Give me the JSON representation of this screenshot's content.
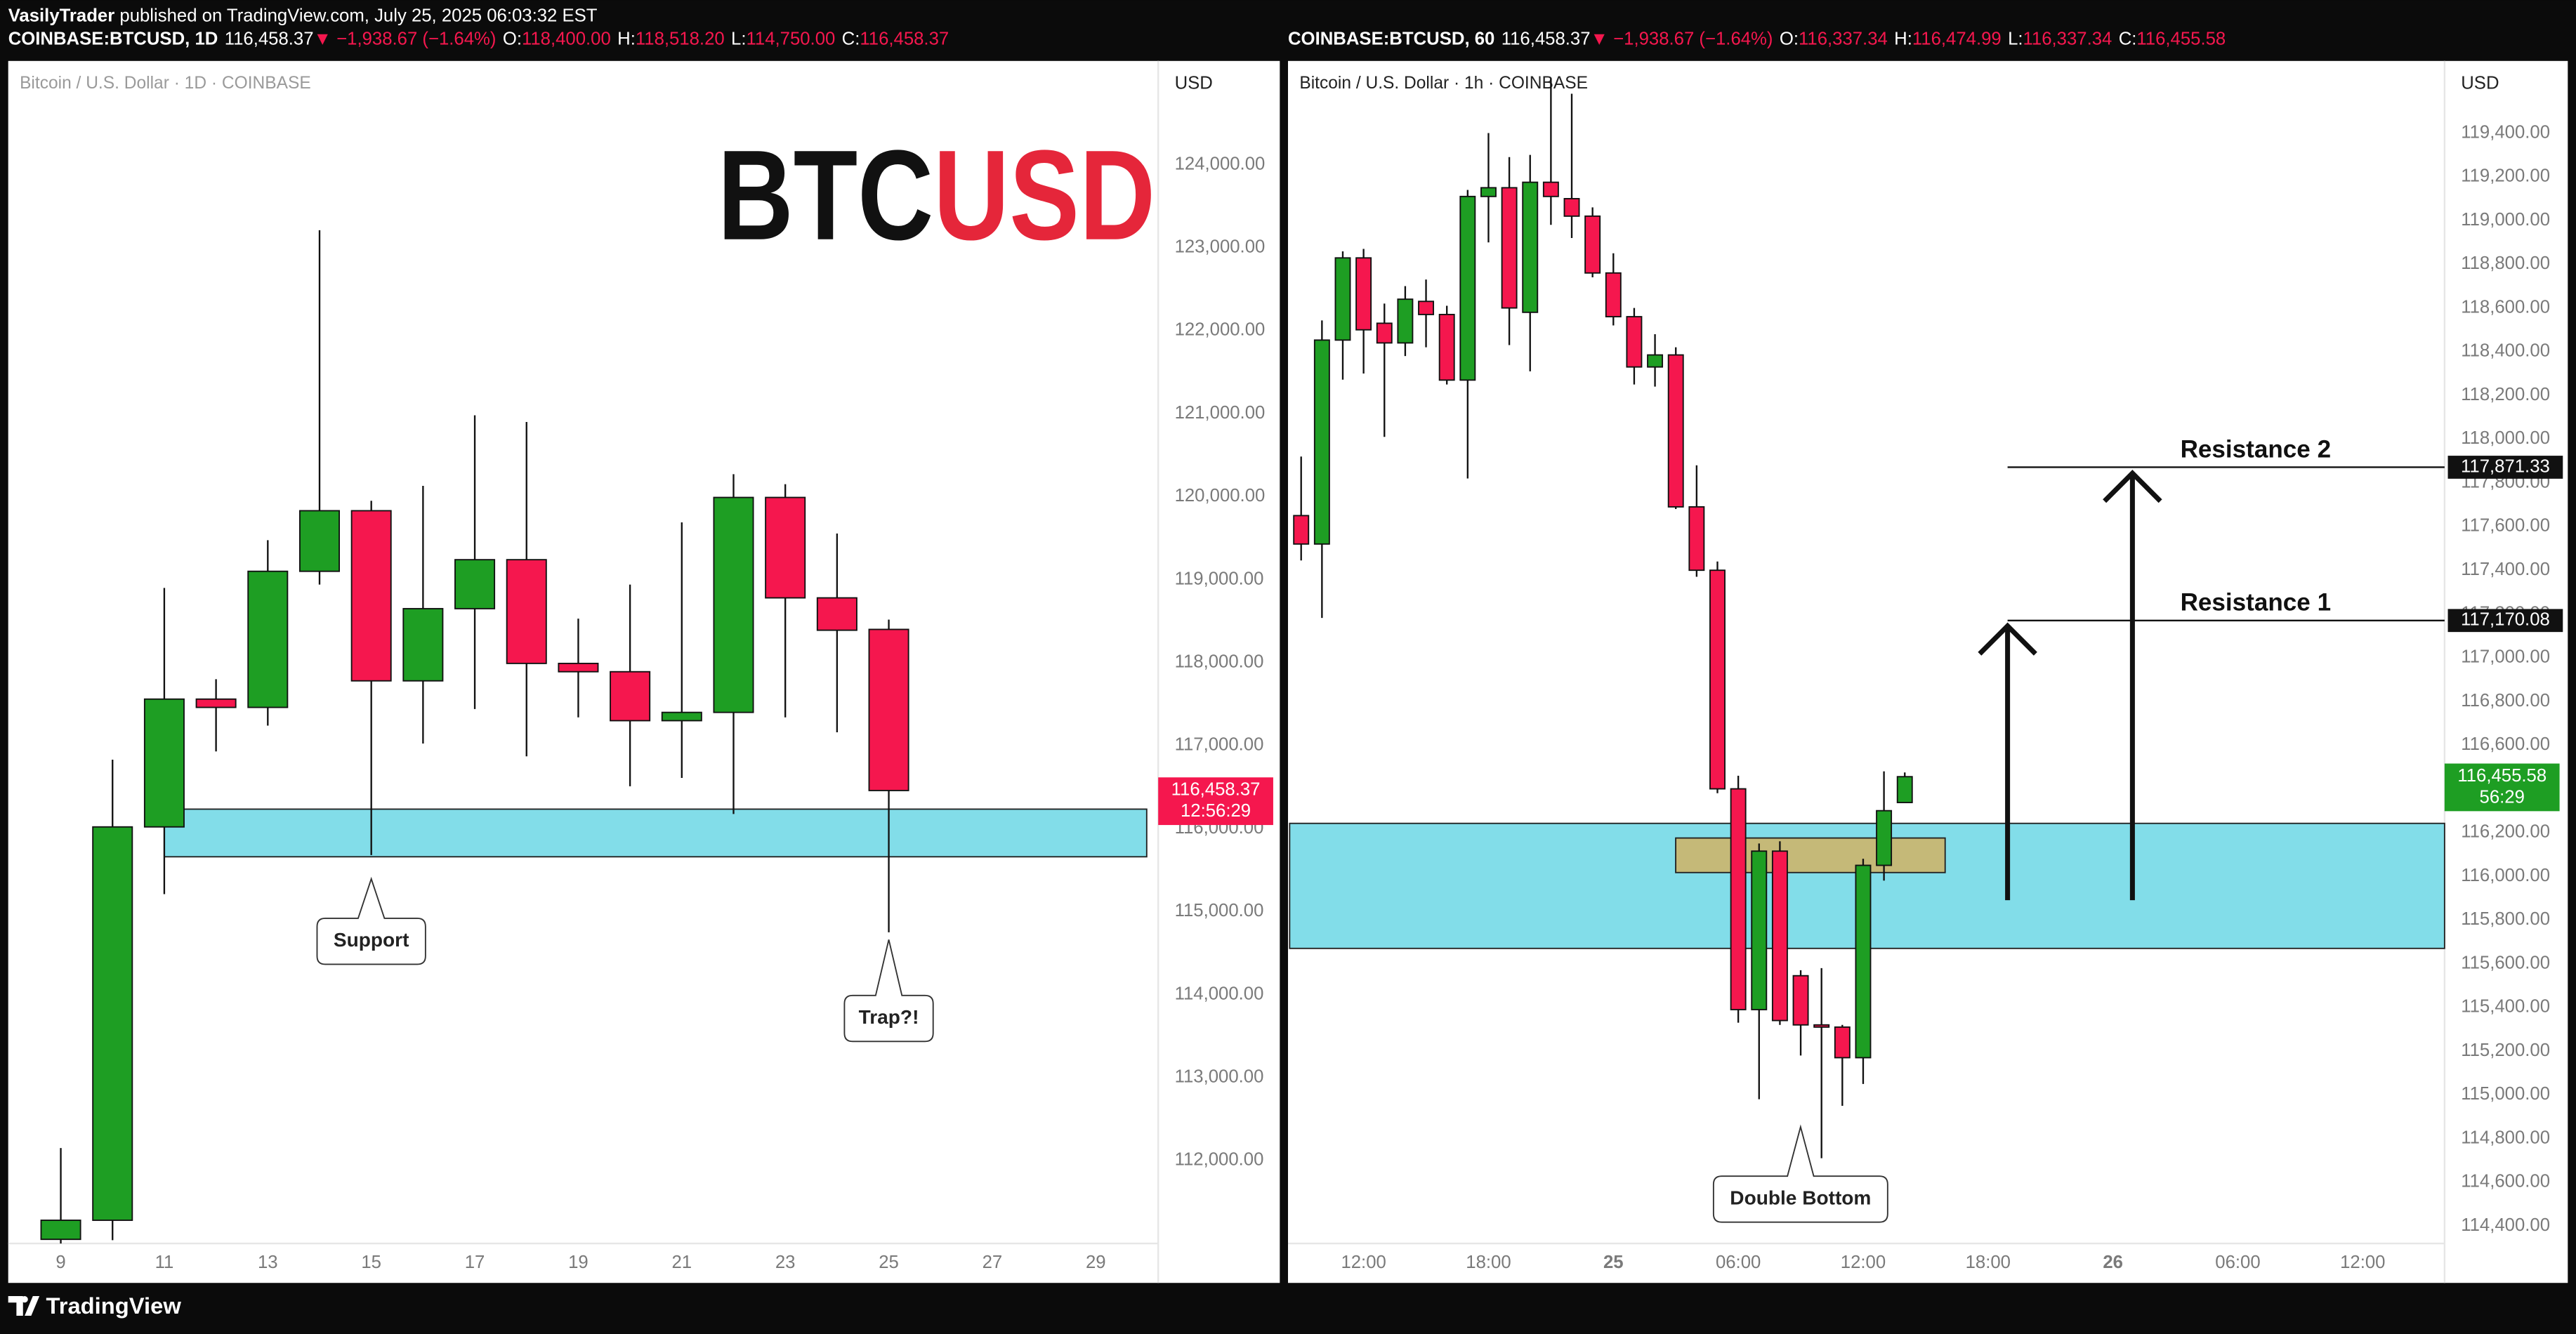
{
  "header": {
    "publisher": "VasilyTrader",
    "published": " published on TradingView.com, July 25, 2025 06:03:32 EST"
  },
  "footer": "TradingView",
  "chart_data": [
    {
      "type": "candlestick",
      "symbol": "COINBASE:BTCUSD, 1D",
      "last": "116,458.37",
      "change": "▼ −1,938.67 (−1.64%)",
      "ohlc_labels": [
        {
          "key": "O:",
          "value": "118,400.00"
        },
        {
          "key": "H:",
          "value": "118,518.20"
        },
        {
          "key": "L:",
          "value": "114,750.00"
        },
        {
          "key": "C:",
          "value": "116,458.37"
        }
      ],
      "pane_title": "Bitcoin / U.S. Dollar · 1D · COINBASE",
      "currency": "USD",
      "watermark": [
        "BTC",
        "USD"
      ],
      "up_color": "#1e9e23",
      "down_color": "#f5174e",
      "categories": [
        "9",
        null,
        "11",
        null,
        "13",
        null,
        "15",
        null,
        "17",
        null,
        "19",
        null,
        "21",
        null,
        "23",
        null,
        "25",
        null,
        "27",
        null,
        "29"
      ],
      "open": [
        111050,
        111280,
        116020,
        117560,
        117460,
        119100,
        119830,
        117780,
        118650,
        119240,
        117990,
        117890,
        117300,
        117400,
        119990,
        118780,
        118400.0,
        null,
        null,
        null,
        null
      ],
      "high": [
        112150,
        116830,
        118900,
        117800,
        119475,
        123210,
        119950,
        120130,
        120980,
        120900,
        118530,
        118940,
        119690,
        120270,
        120150,
        119555,
        118518.2,
        null,
        null,
        null,
        null
      ],
      "low": [
        111000,
        111040,
        115210,
        116930,
        117240,
        118940,
        115680,
        117025,
        117440,
        116870,
        117340,
        116510,
        116610,
        116175,
        117340,
        117160,
        114750.0,
        null,
        null,
        null,
        null
      ],
      "close": [
        111280,
        116020,
        117560,
        117460,
        119100,
        119830,
        117780,
        118650,
        119240,
        117990,
        117890,
        117300,
        117400,
        119990,
        118780,
        118390,
        116458.37,
        null,
        null,
        null,
        null
      ],
      "ylim": [
        111000,
        125250
      ],
      "yticks": [
        {
          "value": 112000,
          "label": "112,000.00"
        },
        {
          "value": 113000,
          "label": "113,000.00"
        },
        {
          "value": 114000,
          "label": "114,000.00"
        },
        {
          "value": 115000,
          "label": "115,000.00"
        },
        {
          "value": 116000,
          "label": "116,000.00"
        },
        {
          "value": 117000,
          "label": "117,000.00"
        },
        {
          "value": 118000,
          "label": "118,000.00"
        },
        {
          "value": 119000,
          "label": "119,000.00"
        },
        {
          "value": 120000,
          "label": "120,000.00"
        },
        {
          "value": 121000,
          "label": "121,000.00"
        },
        {
          "value": 122000,
          "label": "122,000.00"
        },
        {
          "value": 123000,
          "label": "123,000.00"
        },
        {
          "value": 124000,
          "label": "124,000.00"
        }
      ],
      "zone": [
        115660,
        116234
      ],
      "callouts": [
        "Support",
        "Trap?!"
      ],
      "last_price": {
        "value": 116458.37,
        "label": "116,458.37"
      },
      "countdown": "12:56:29"
    },
    {
      "type": "candlestick",
      "symbol": "COINBASE:BTCUSD, 60",
      "last": "116,458.37",
      "change": "▼ −1,938.67 (−1.64%)",
      "ohlc_labels": [
        {
          "key": "O:",
          "value": "116,337.34"
        },
        {
          "key": "H:",
          "value": "116,474.99"
        },
        {
          "key": "L:",
          "value": "116,337.34"
        },
        {
          "key": "C:",
          "value": "116,455.58"
        }
      ],
      "pane_title": "Bitcoin / U.S. Dollar · 1h · COINBASE",
      "currency": "USD",
      "up_color": "#1e9e23",
      "down_color": "#f5174e",
      "categories": [
        null,
        null,
        null,
        "12:00",
        null,
        null,
        null,
        null,
        null,
        "18:00",
        null,
        null,
        null,
        null,
        null,
        "25",
        null,
        null,
        null,
        null,
        null,
        "06:00",
        null,
        null,
        null,
        null,
        null,
        "12:00",
        null,
        null,
        null,
        null,
        null,
        "18:00",
        null,
        null,
        null,
        null,
        null,
        "26",
        null,
        null,
        null,
        null,
        null,
        "06:00",
        null,
        null,
        null,
        null,
        null,
        "12:00",
        null,
        null,
        null,
        null
      ],
      "open": [
        117650,
        117520,
        118453,
        118829,
        118530,
        118440,
        118630,
        118570,
        118270,
        119110,
        119150,
        118580,
        119175,
        119100,
        119020,
        118760,
        118560,
        118330,
        118385,
        117690,
        117400,
        116400,
        115390,
        116115,
        115545,
        115320,
        115310,
        115170,
        116050,
        116337.34,
        null,
        null,
        null,
        null,
        null,
        null,
        null,
        null,
        null,
        null,
        null,
        null,
        null,
        null,
        null,
        null,
        null,
        null,
        null,
        null,
        null,
        null,
        null,
        null,
        null,
        null
      ],
      "high": [
        117920,
        118543,
        118859,
        118870,
        118620,
        118700,
        118730,
        118610,
        119140,
        119400,
        119290,
        119300,
        119650,
        119580,
        119060,
        118850,
        118600,
        118480,
        118420,
        117880,
        117440,
        116460,
        116150,
        116160,
        115570,
        115580,
        115320,
        116080,
        116480,
        116474.99,
        null,
        null,
        null,
        null,
        null,
        null,
        null,
        null,
        null,
        null,
        null,
        null,
        null,
        null,
        null,
        null,
        null,
        null,
        null,
        null,
        null,
        null,
        null,
        null,
        null,
        null
      ],
      "low": [
        117445,
        117182,
        118272,
        118300,
        118010,
        118380,
        118420,
        118250,
        117820,
        118900,
        118430,
        118310,
        118980,
        118920,
        118740,
        118520,
        118250,
        118240,
        117680,
        117370,
        116380,
        115330,
        114980,
        115320,
        115180,
        114710,
        114950,
        115050,
        115980,
        116337.34,
        null,
        null,
        null,
        null,
        null,
        null,
        null,
        null,
        null,
        null,
        null,
        null,
        null,
        null,
        null,
        null,
        null,
        null,
        null,
        null,
        null,
        null,
        null,
        null,
        null,
        null
      ],
      "close": [
        117520,
        118453,
        118829,
        118500,
        118440,
        118640,
        118570,
        118270,
        119110,
        119150,
        118600,
        119175,
        119110,
        119020,
        118760,
        118560,
        118330,
        118385,
        117690,
        117400,
        116400,
        115390,
        116115,
        115340,
        115320,
        115310,
        115170,
        116050,
        116300,
        116455.58,
        null,
        null,
        null,
        null,
        null,
        null,
        null,
        null,
        null,
        null,
        null,
        null,
        null,
        null,
        null,
        null,
        null,
        null,
        null,
        null,
        null,
        null,
        null,
        null,
        null,
        null
      ],
      "ylim": [
        114320,
        119730
      ],
      "yticks": [
        {
          "value": 114400,
          "label": "114,400.00"
        },
        {
          "value": 114600,
          "label": "114,600.00"
        },
        {
          "value": 114800,
          "label": "114,800.00"
        },
        {
          "value": 115000,
          "label": "115,000.00"
        },
        {
          "value": 115200,
          "label": "115,200.00"
        },
        {
          "value": 115400,
          "label": "115,400.00"
        },
        {
          "value": 115600,
          "label": "115,600.00"
        },
        {
          "value": 115800,
          "label": "115,800.00"
        },
        {
          "value": 116000,
          "label": "116,000.00"
        },
        {
          "value": 116200,
          "label": "116,200.00"
        },
        {
          "value": 116400,
          "label": "116,400.00"
        },
        {
          "value": 116600,
          "label": "116,600.00"
        },
        {
          "value": 116800,
          "label": "116,800.00"
        },
        {
          "value": 117000,
          "label": "117,000.00"
        },
        {
          "value": 117200,
          "label": "117,200.00"
        },
        {
          "value": 117400,
          "label": "117,400.00"
        },
        {
          "value": 117600,
          "label": "117,600.00"
        },
        {
          "value": 117800,
          "label": "117,800.00"
        },
        {
          "value": 118000,
          "label": "118,000.00"
        },
        {
          "value": 118200,
          "label": "118,200.00"
        },
        {
          "value": 118400,
          "label": "118,400.00"
        },
        {
          "value": 118600,
          "label": "118,600.00"
        },
        {
          "value": 118800,
          "label": "118,800.00"
        },
        {
          "value": 119000,
          "label": "119,000.00"
        },
        {
          "value": 119200,
          "label": "119,200.00"
        },
        {
          "value": 119400,
          "label": "119,400.00"
        }
      ],
      "zone": [
        115670,
        116242
      ],
      "box": [
        116017,
        116175
      ],
      "resistances": [
        {
          "name": "Resistance 1",
          "value": 117170.08,
          "label": "117,170.08"
        },
        {
          "name": "Resistance 2",
          "value": 117871.33,
          "label": "117,871.33"
        }
      ],
      "callouts": [
        "Double Bottom"
      ],
      "last_price": {
        "value": 116455.58,
        "label": "116,455.58"
      },
      "countdown": "56:29"
    }
  ]
}
